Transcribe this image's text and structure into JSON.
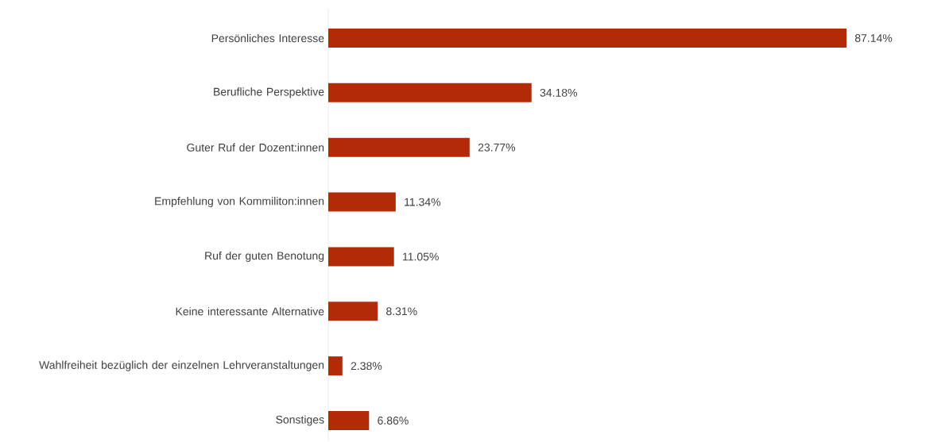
{
  "chart_data": {
    "type": "bar",
    "orientation": "horizontal",
    "categories": [
      "Persönliches Interesse",
      "Berufliche Perspektive",
      "Guter Ruf der Dozent:innen",
      "Empfehlung von Kommiliton:innen",
      "Ruf der guten Benotung",
      "Keine interessante Alternative",
      "Wahlfreiheit bezüglich der einzelnen Lehrveranstaltungen",
      "Sonstiges"
    ],
    "values": [
      87.14,
      34.18,
      23.77,
      11.34,
      11.05,
      8.31,
      2.38,
      6.86
    ],
    "value_labels": [
      "87.14%",
      "34.18%",
      "23.77%",
      "11.34%",
      "11.05%",
      "8.31%",
      "2.38%",
      "6.86%"
    ],
    "color": "#b22a08"
  }
}
